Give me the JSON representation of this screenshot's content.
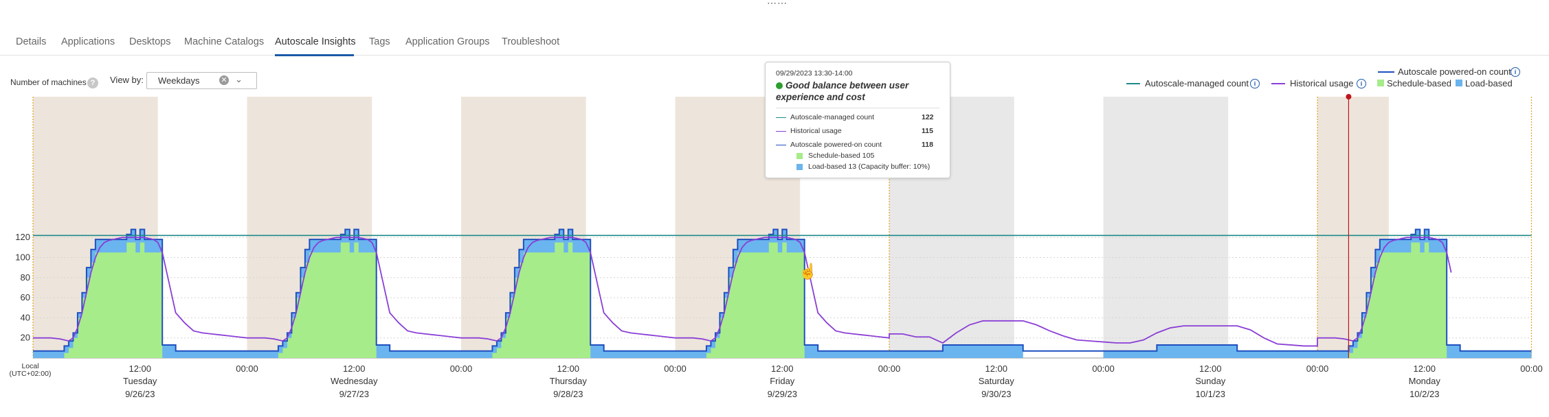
{
  "tabs": [
    {
      "label": "Details",
      "active": false
    },
    {
      "label": "Applications",
      "active": false
    },
    {
      "label": "Desktops",
      "active": false
    },
    {
      "label": "Machine Catalogs",
      "active": false
    },
    {
      "label": "Autoscale Insights",
      "active": true
    },
    {
      "label": "Tags",
      "active": false
    },
    {
      "label": "Application Groups",
      "active": false
    },
    {
      "label": "Troubleshoot",
      "active": false
    }
  ],
  "controls": {
    "y_axis_label": "Number of machines",
    "help_icon": "?",
    "view_by_label": "View by:",
    "view_by_value": "Weekdays",
    "clear_glyph": "✕",
    "chevron_glyph": "⌄"
  },
  "legend": {
    "autoscale_managed": "Autoscale-managed count",
    "historical": "Historical usage",
    "powered_on": "Autoscale powered-on count",
    "schedule": "Schedule-based",
    "load": "Load-based",
    "info_glyph": "i"
  },
  "tooltip": {
    "date": "09/29/2023 13:30-14:00",
    "status": "Good balance between user experience and cost",
    "managed_label": "Autoscale-managed count",
    "managed_value": "122",
    "historical_label": "Historical usage",
    "historical_value": "115",
    "powered_label": "Autoscale powered-on count",
    "powered_value": "118",
    "schedule_label": "Schedule-based 105",
    "load_label": "Load-based 13 (Capacity buffer: 10%)"
  },
  "colors": {
    "managed": "#1f8a8a",
    "historical": "#8a3ed6",
    "powered": "#1f4fbf",
    "schedule": "#a6ec8a",
    "load": "#6ab4ef",
    "weekday_shade": "#ede5db",
    "weekend_shade": "#e8e8e8",
    "now_marker": "#c0141b",
    "tab_underline": "#1a5aa8"
  },
  "chart_data": {
    "type": "area",
    "y_axis": {
      "min": 0,
      "max": 130,
      "ticks": [
        20,
        40,
        60,
        80,
        100,
        120
      ]
    },
    "x_axis": {
      "timezone_label": [
        "Local",
        "(UTC+02:00)"
      ],
      "start": "9/26/23 00:00",
      "tick_labels": [
        {
          "time": "12:00",
          "day": "Tuesday",
          "date": "9/26/23"
        },
        {
          "time": "00:00",
          "day": "",
          "date": ""
        },
        {
          "time": "12:00",
          "day": "Wednesday",
          "date": "9/27/23"
        },
        {
          "time": "00:00",
          "day": "",
          "date": ""
        },
        {
          "time": "12:00",
          "day": "Thursday",
          "date": "9/28/23"
        },
        {
          "time": "00:00",
          "day": "",
          "date": ""
        },
        {
          "time": "12:00",
          "day": "Friday",
          "date": "9/29/23"
        },
        {
          "time": "00:00",
          "day": "",
          "date": ""
        },
        {
          "time": "12:00",
          "day": "Saturday",
          "date": "9/30/23"
        },
        {
          "time": "00:00",
          "day": "",
          "date": ""
        },
        {
          "time": "12:00",
          "day": "Sunday",
          "date": "10/1/23"
        },
        {
          "time": "00:00",
          "day": "",
          "date": ""
        },
        {
          "time": "12:00",
          "day": "Monday",
          "date": "10/2/23"
        },
        {
          "time": "00:00",
          "day": "",
          "date": ""
        }
      ]
    },
    "autoscale_managed_count": 122,
    "weekday_profile": {
      "hours": [
        0,
        2,
        3,
        3.5,
        4,
        4.5,
        5,
        5.5,
        6,
        6.5,
        7,
        7.5,
        8,
        8.5,
        9,
        9.5,
        10,
        10.5,
        11,
        11.5,
        12,
        12.5,
        13,
        13.5,
        14,
        14.5,
        15,
        16
      ],
      "schedule_based": [
        0,
        0,
        0,
        5,
        10,
        20,
        40,
        60,
        80,
        95,
        105,
        105,
        105,
        105,
        105,
        105,
        105,
        115,
        115,
        105,
        115,
        105,
        105,
        105,
        105,
        0,
        0,
        0
      ],
      "powered_on": [
        7,
        7,
        7,
        12,
        17,
        25,
        45,
        65,
        90,
        108,
        118,
        118,
        118,
        118,
        118,
        118,
        118,
        123,
        128,
        118,
        128,
        118,
        118,
        118,
        118,
        13,
        13,
        7
      ],
      "historical_usage": [
        20,
        20,
        19,
        18,
        17,
        20,
        30,
        45,
        65,
        85,
        100,
        110,
        115,
        117,
        118,
        119,
        120,
        120,
        120,
        120,
        120,
        120,
        119,
        118,
        115,
        105,
        85,
        45
      ]
    },
    "weekday_evening_historical": {
      "hours": [
        16,
        17,
        18,
        19,
        20,
        21,
        22,
        23,
        24
      ],
      "values": [
        45,
        35,
        27,
        25,
        24,
        23,
        22,
        21,
        20
      ]
    },
    "weekend": {
      "powered_on": [
        {
          "from": "00:00",
          "to": "06:00",
          "value": 7
        },
        {
          "from": "06:00",
          "to": "15:00",
          "value": 13
        },
        {
          "from": "15:00",
          "to": "24:00",
          "value": 7
        }
      ],
      "historical_saturday": [
        24,
        24,
        21,
        21,
        15,
        25,
        33,
        37,
        37,
        37,
        37,
        33,
        27,
        22,
        18,
        17
      ],
      "historical_sunday": [
        16,
        15,
        15,
        18,
        25,
        30,
        32,
        32,
        32,
        32,
        32,
        28,
        20,
        14,
        13,
        12
      ]
    },
    "annotations": {
      "now_marker": "Monday 10/2/23 ~04:00",
      "tooltip_at": "Friday 9/29/23 13:30-14:00"
    }
  }
}
